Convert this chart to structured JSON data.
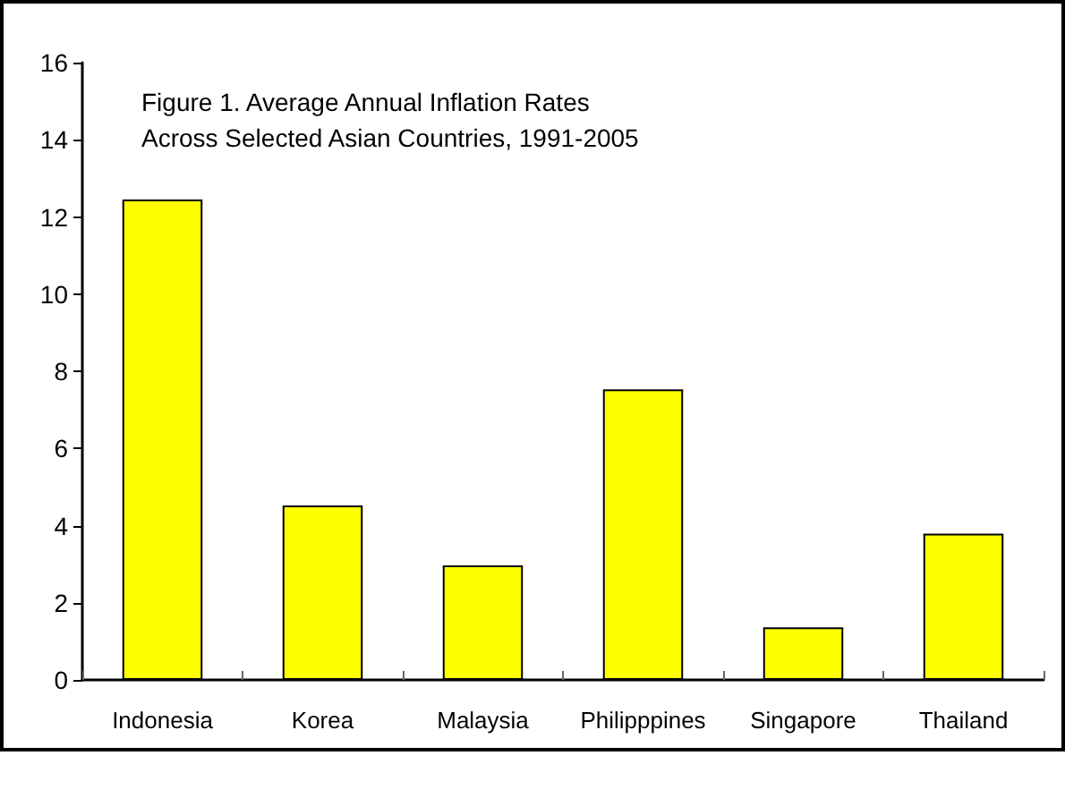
{
  "chart_data": {
    "type": "bar",
    "title": "Figure 1. Average Annual Inflation Rates Across Selected Asian Countries, 1991-2005",
    "categories": [
      "Indonesia",
      "Korea",
      "Malaysia",
      "Philipppines",
      "Singapore",
      "Thailand"
    ],
    "values": [
      12.45,
      4.52,
      2.97,
      7.53,
      1.36,
      3.79
    ],
    "color": "#ffff00",
    "ylim": [
      0,
      16
    ],
    "yticks": [
      0,
      2,
      4,
      6,
      8,
      10,
      12,
      14,
      16
    ],
    "grid": false
  }
}
